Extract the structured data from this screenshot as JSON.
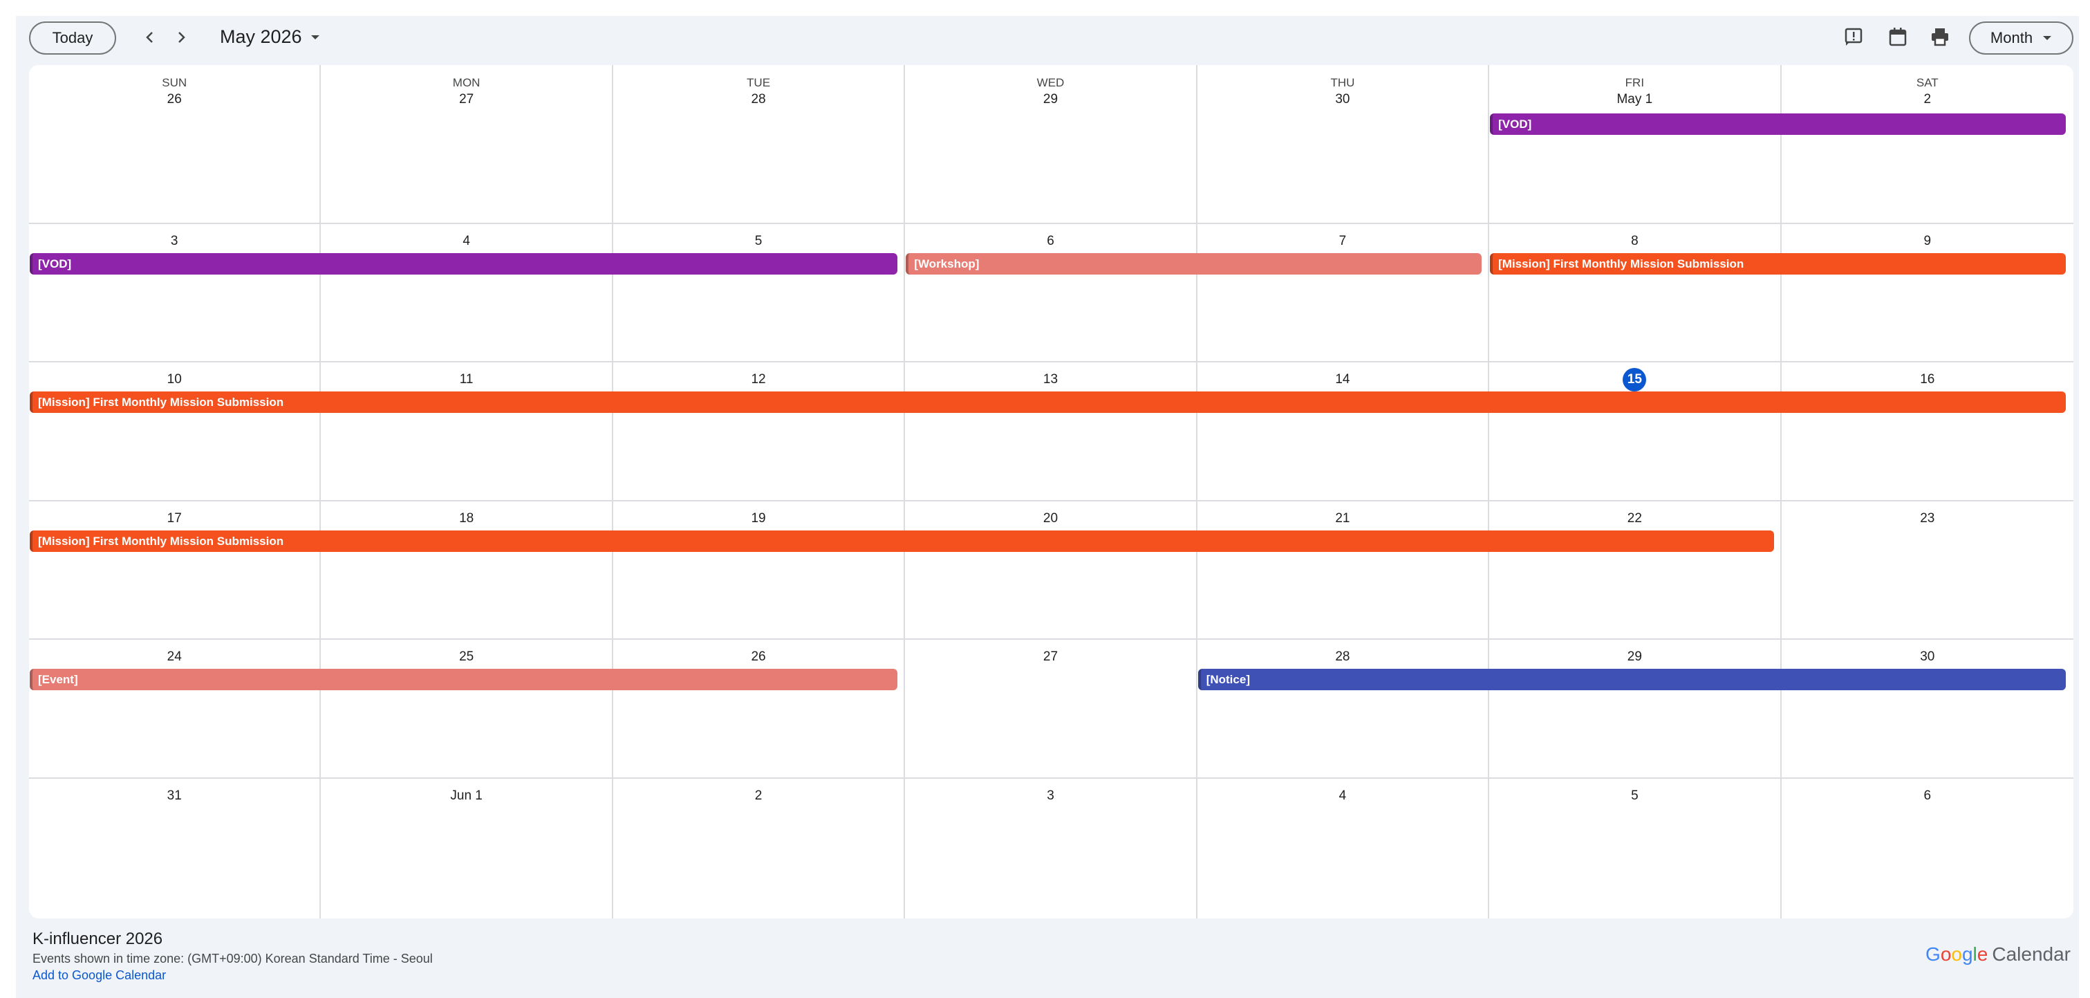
{
  "toolbar": {
    "today": "Today",
    "month_label": "May 2026",
    "view": "Month"
  },
  "weekdays": [
    "SUN",
    "MON",
    "TUE",
    "WED",
    "THU",
    "FRI",
    "SAT"
  ],
  "weeks": [
    [
      "26",
      "27",
      "28",
      "29",
      "30",
      "May 1",
      "2"
    ],
    [
      "3",
      "4",
      "5",
      "6",
      "7",
      "8",
      "9"
    ],
    [
      "10",
      "11",
      "12",
      "13",
      "14",
      "15",
      "16"
    ],
    [
      "17",
      "18",
      "19",
      "20",
      "21",
      "22",
      "23"
    ],
    [
      "24",
      "25",
      "26",
      "27",
      "28",
      "29",
      "30"
    ],
    [
      "31",
      "Jun 1",
      "2",
      "3",
      "4",
      "5",
      "6"
    ]
  ],
  "today": {
    "week": 2,
    "day": 5
  },
  "events": [
    {
      "week": 0,
      "first": 5,
      "last": 6,
      "title": "[VOD]",
      "color": "#8e24aa"
    },
    {
      "week": 1,
      "first": 0,
      "last": 2,
      "title": "[VOD]",
      "color": "#8e24aa"
    },
    {
      "week": 1,
      "first": 3,
      "last": 4,
      "title": "[Workshop]",
      "color": "#e67c73"
    },
    {
      "week": 1,
      "first": 5,
      "last": 6,
      "title": "[Mission] First Monthly Mission Submission",
      "color": "#f4511e"
    },
    {
      "week": 2,
      "first": 0,
      "last": 6,
      "title": "[Mission] First Monthly Mission Submission",
      "color": "#f4511e"
    },
    {
      "week": 3,
      "first": 0,
      "last": 5,
      "title": "[Mission] First Monthly Mission Submission",
      "color": "#f4511e"
    },
    {
      "week": 4,
      "first": 0,
      "last": 2,
      "title": "[Event]",
      "color": "#e67c73"
    },
    {
      "week": 4,
      "first": 4,
      "last": 6,
      "title": "[Notice]",
      "color": "#3f51b5"
    }
  ],
  "footer": {
    "title": "K-influencer 2026",
    "timezone": "Events shown in time zone: (GMT+09:00) Korean Standard Time - Seoul",
    "link": "Add to Google Calendar",
    "brand_google": "Google",
    "brand_calendar": "Calendar"
  }
}
